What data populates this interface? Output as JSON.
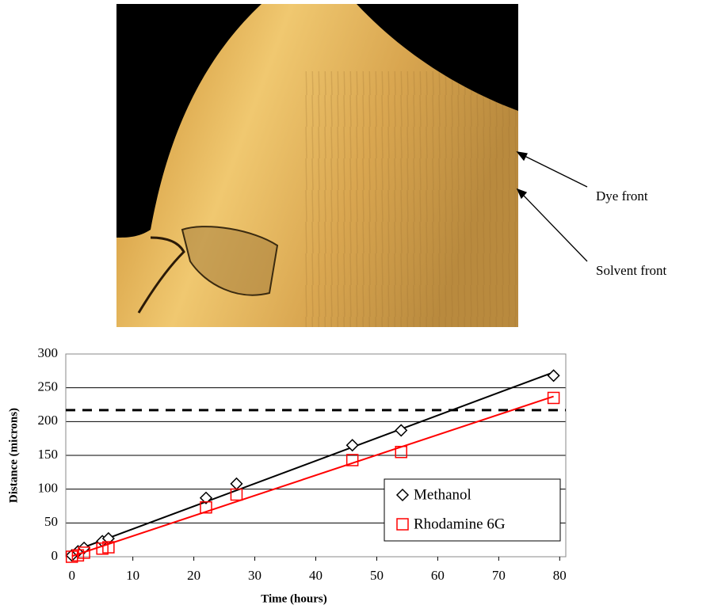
{
  "figure": {
    "annotations": [
      "Dye front",
      "Solvent front"
    ]
  },
  "chart_data": {
    "type": "scatter",
    "x_label": "Time (hours)",
    "y_label": "Distance (microns)",
    "xlim": [
      -1,
      81
    ],
    "xticks": [
      0,
      10,
      20,
      30,
      40,
      50,
      60,
      70,
      80
    ],
    "ylim": [
      0,
      300
    ],
    "yticks": [
      0,
      50,
      100,
      150,
      200,
      250,
      300
    ],
    "grid": true,
    "legend": "lower right",
    "trendline": "linear",
    "hline": {
      "value": 217,
      "style": "dashed",
      "color": "#000000"
    },
    "series": [
      {
        "name": "Methanol",
        "color": "#000000",
        "marker": "diamond",
        "x": [
          0,
          1,
          2,
          5,
          6,
          22,
          27,
          46,
          54,
          79
        ],
        "values": [
          2,
          8,
          13,
          23,
          27,
          87,
          108,
          165,
          187,
          268
        ]
      },
      {
        "name": "Rhodamine 6G",
        "color": "#ff0000",
        "marker": "square",
        "x": [
          0,
          1,
          2,
          5,
          6,
          22,
          27,
          46,
          54,
          79
        ],
        "values": [
          0,
          2,
          6,
          12,
          14,
          73,
          92,
          143,
          155,
          235
        ]
      }
    ]
  }
}
